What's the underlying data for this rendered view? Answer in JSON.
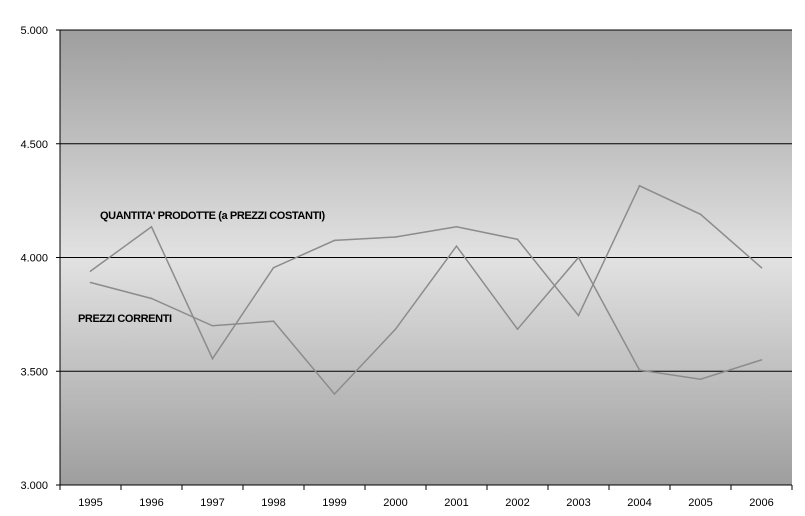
{
  "chart_data": {
    "type": "line",
    "title": "",
    "xlabel": "",
    "ylabel": "",
    "x": [
      "1995",
      "1996",
      "1997",
      "1998",
      "1999",
      "2000",
      "2001",
      "2002",
      "2003",
      "2004",
      "2005",
      "2006"
    ],
    "ylim": [
      3000,
      5000
    ],
    "yticks": [
      3000,
      3500,
      4000,
      4500,
      5000
    ],
    "ytick_labels": [
      "3.000",
      "3.500",
      "4.000",
      "4.500",
      "5.000"
    ],
    "grid": true,
    "legend": "none",
    "series": [
      {
        "key": "quantita",
        "values": [
          3940,
          4135,
          3555,
          3955,
          4075,
          4090,
          4135,
          4080,
          3745,
          4315,
          4190,
          3955
        ],
        "color": "#8c8c8c"
      },
      {
        "key": "prezzi",
        "values": [
          3890,
          3820,
          3700,
          3720,
          3400,
          3685,
          4050,
          3685,
          4000,
          3505,
          3465,
          3550
        ],
        "color": "#8c8c8c"
      }
    ],
    "annotations": [
      {
        "series_key": "quantita",
        "text": "QUANTITA' PRODOTTE (a PREZZI COSTANTI)"
      },
      {
        "series_key": "prezzi",
        "text": "PREZZI CORRENTI"
      }
    ]
  }
}
